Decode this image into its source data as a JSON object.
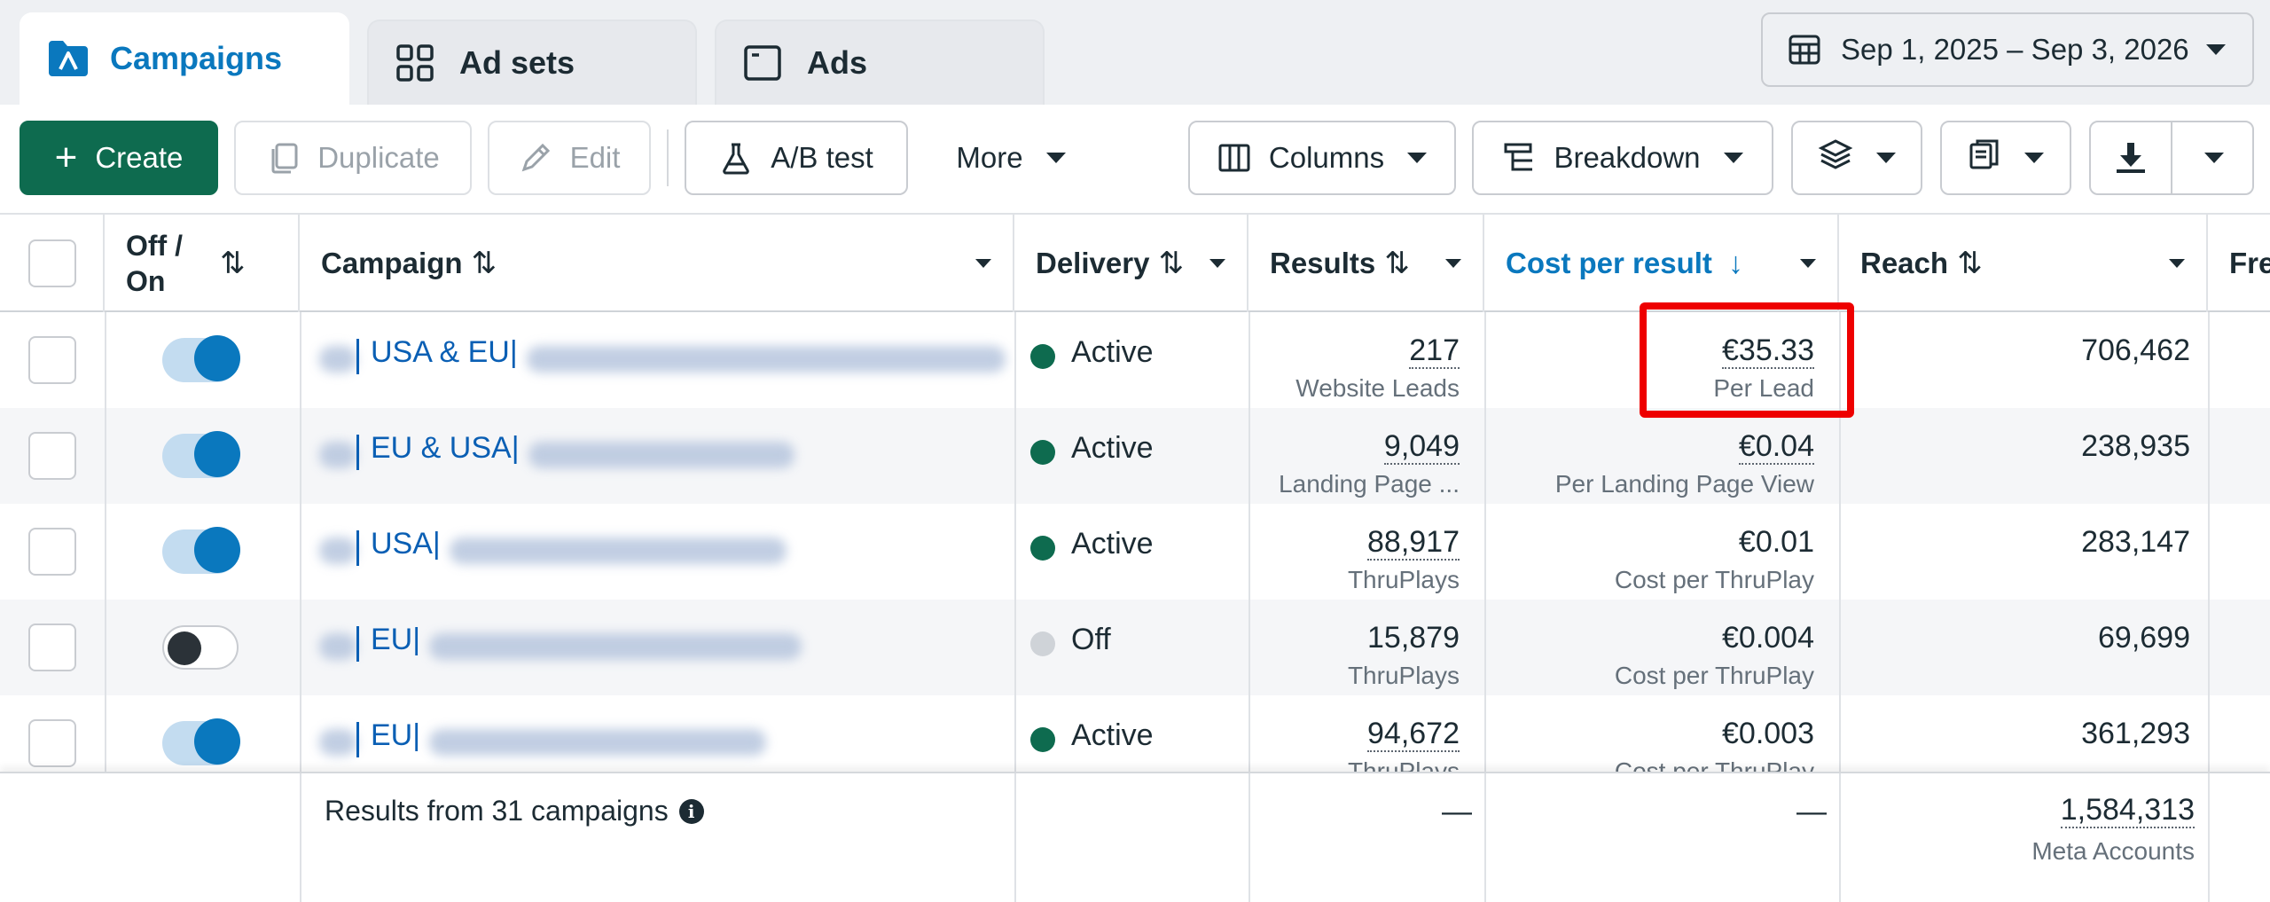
{
  "tabs": [
    {
      "label": "Campaigns",
      "icon": "campaigns-folder-icon",
      "active": true
    },
    {
      "label": "Ad sets",
      "icon": "grid-icon",
      "active": false
    },
    {
      "label": "Ads",
      "icon": "ad-window-icon",
      "active": false
    }
  ],
  "date_range": {
    "label": "Sep 1, 2025 – Sep 3, 2026",
    "icon": "calendar-icon"
  },
  "toolbar": {
    "create": "Create",
    "duplicate": "Duplicate",
    "edit": "Edit",
    "ab_test": "A/B test",
    "more": "More",
    "columns": "Columns",
    "breakdown": "Breakdown"
  },
  "columns": {
    "off_on": "Off / On",
    "campaign": "Campaign",
    "delivery": "Delivery",
    "results": "Results",
    "cost_per_result": "Cost per result",
    "reach": "Reach",
    "frequency_partial": "Fre"
  },
  "sort_glyphs": {
    "both": "⇅",
    "down": "↓"
  },
  "rows": [
    {
      "toggle": "on",
      "campaign": "USA & EU|",
      "delivery": "Active",
      "delivery_color": "#0e6b4f",
      "results": "217",
      "results_sub": "Website Leads",
      "cost": "€35.33",
      "cost_sub": "Per Lead",
      "reach": "706,462"
    },
    {
      "toggle": "on",
      "campaign": "EU & USA|",
      "delivery": "Active",
      "delivery_color": "#0e6b4f",
      "results": "9,049",
      "results_sub": "Landing Page ...",
      "cost": "€0.04",
      "cost_sub": "Per Landing Page View",
      "reach": "238,935"
    },
    {
      "toggle": "on",
      "campaign": "USA|",
      "delivery": "Active",
      "delivery_color": "#0e6b4f",
      "results": "88,917",
      "results_sub": "ThruPlays",
      "cost": "€0.01",
      "cost_sub": "Cost per ThruPlay",
      "reach": "283,147"
    },
    {
      "toggle": "off",
      "campaign": "EU|",
      "delivery": "Off",
      "delivery_color": "#cfd3d8",
      "results": "15,879",
      "results_sub": "ThruPlays",
      "cost": "€0.004",
      "cost_sub": "Cost per ThruPlay",
      "reach": "69,699"
    },
    {
      "toggle": "on",
      "campaign": "EU|",
      "delivery": "Active",
      "delivery_color": "#0e6b4f",
      "results": "94,672",
      "results_sub": "ThruPlays",
      "cost": "€0.003",
      "cost_sub": "Cost per ThruPlay",
      "reach": "361,293"
    }
  ],
  "footer": {
    "summary": "Results from 31 campaigns",
    "results": "—",
    "cost": "—",
    "reach": "1,584,313",
    "reach_sub": "Meta Accounts"
  },
  "colors": {
    "accent": "#0a78be",
    "create_button": "#0e6b4f",
    "highlight": "#ee0000"
  }
}
